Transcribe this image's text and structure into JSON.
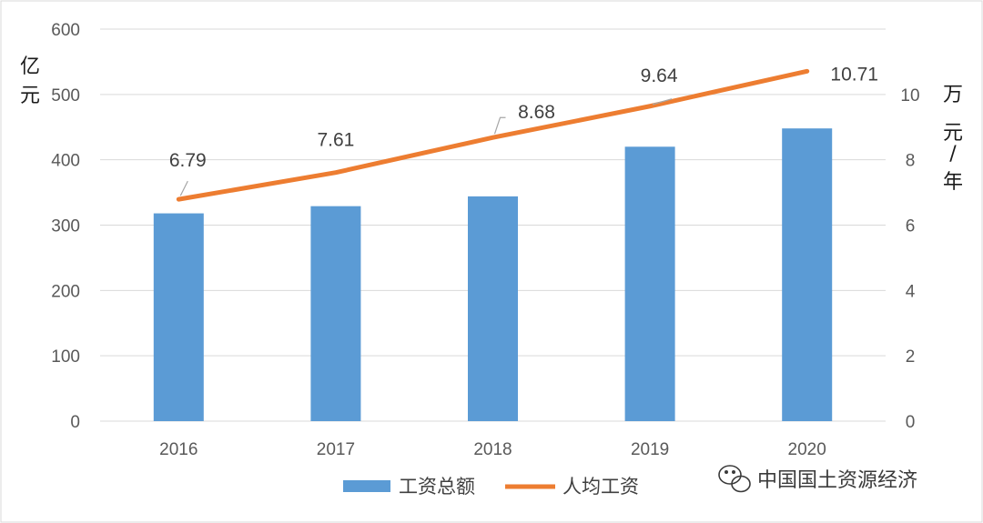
{
  "chart_data": {
    "type": "bar+line",
    "categories": [
      "2016",
      "2017",
      "2018",
      "2019",
      "2020"
    ],
    "series": [
      {
        "name": "工资总额",
        "type": "bar",
        "axis": "left",
        "color": "#5B9BD5",
        "values": [
          318,
          329,
          344,
          420,
          448
        ]
      },
      {
        "name": "人均工资",
        "type": "line",
        "axis": "right",
        "color": "#ED7D31",
        "values": [
          6.79,
          7.61,
          8.68,
          9.64,
          10.71
        ],
        "labels": [
          "6.79",
          "7.61",
          "8.68",
          "9.64",
          "10.71"
        ]
      }
    ],
    "left_axis": {
      "label_lines": [
        "亿",
        "元"
      ],
      "ylim": [
        0,
        600
      ],
      "ticks": [
        "0",
        "100",
        "200",
        "300",
        "400",
        "500",
        "600"
      ]
    },
    "right_axis": {
      "label_lines": [
        "万",
        "元",
        "/",
        "年"
      ],
      "ylim": [
        0,
        12
      ],
      "ticks": [
        "0",
        "2",
        "4",
        "6",
        "8",
        "10"
      ]
    },
    "grid": true,
    "legend_position": "bottom"
  },
  "watermark": {
    "text": "中国国土资源经济",
    "icon": "wechat-icon"
  }
}
